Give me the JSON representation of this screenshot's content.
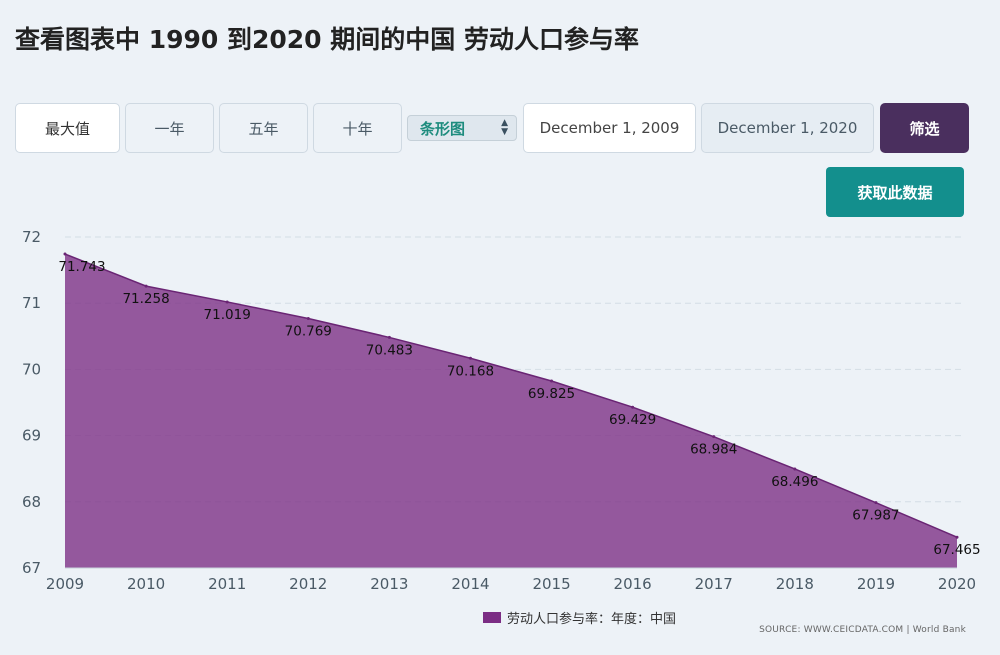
{
  "page": {
    "title": "查看图表中 1990 到2020 期间的中国 劳动人口参与率"
  },
  "range_buttons": [
    {
      "label": "最大值",
      "active": true
    },
    {
      "label": "一年",
      "active": false
    },
    {
      "label": "五年",
      "active": false
    },
    {
      "label": "十年",
      "active": false
    }
  ],
  "chart_type_select": {
    "value": "条形图"
  },
  "date_range": {
    "start": "December 1, 2009",
    "end": "December 1, 2020"
  },
  "filter_button": {
    "label": "筛选"
  },
  "get_data_button": {
    "label": "获取此数据"
  },
  "legend": {
    "label": "劳动人口参与率：年度：中国",
    "color": "#7b2d84"
  },
  "source": "SOURCE: WWW.CEICDATA.COM | World Bank",
  "chart_data": {
    "type": "area",
    "x": [
      "2009",
      "2010",
      "2011",
      "2012",
      "2013",
      "2014",
      "2015",
      "2016",
      "2017",
      "2018",
      "2019",
      "2020"
    ],
    "series": [
      {
        "name": "劳动人口参与率：年度：中国",
        "values": [
          71.743,
          71.258,
          71.019,
          70.769,
          70.483,
          70.168,
          69.825,
          69.429,
          68.984,
          68.496,
          67.987,
          67.465
        ],
        "labels": [
          "71.743",
          "71.258",
          "71.019",
          "70.769",
          "70.483",
          "70.168",
          "69.825",
          "69.429",
          "68.984",
          "68.496",
          "67.987",
          "67.465"
        ],
        "color": "#7b2d84"
      }
    ],
    "y_ticks": [
      "67",
      "68",
      "69",
      "70",
      "71",
      "72"
    ],
    "ylim": [
      67,
      72
    ],
    "grid": true
  }
}
